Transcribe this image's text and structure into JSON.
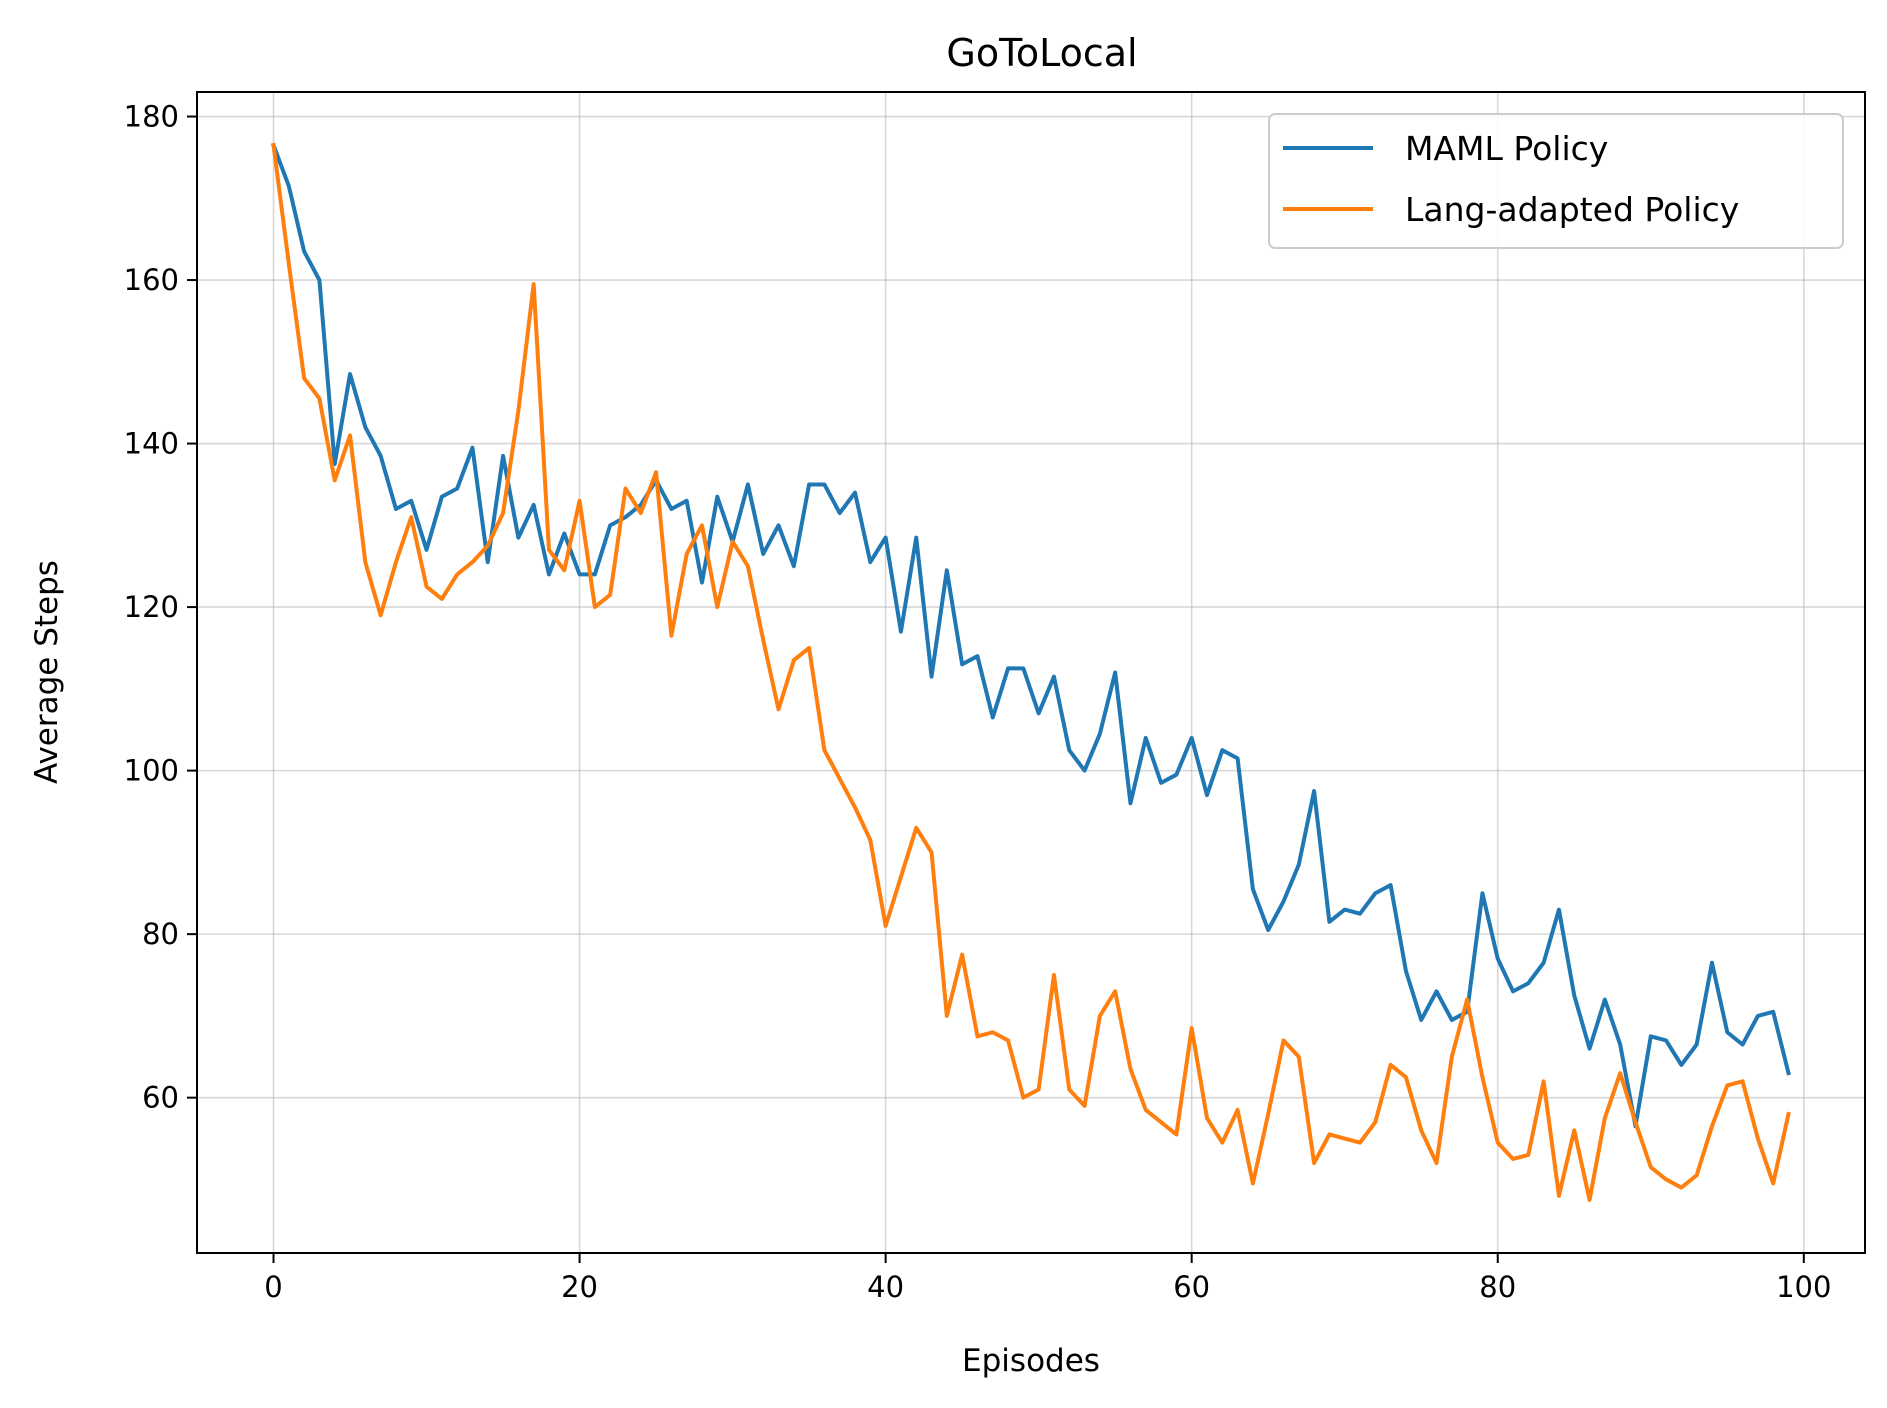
{
  "chart_data": {
    "type": "line",
    "title": "GoToLocal",
    "xlabel": "Episodes",
    "ylabel": "Average Steps",
    "xlim": [
      -5,
      104
    ],
    "ylim": [
      41,
      183
    ],
    "xticks": [
      0,
      20,
      40,
      60,
      80,
      100
    ],
    "yticks": [
      60,
      80,
      100,
      120,
      140,
      160,
      180
    ],
    "grid": true,
    "legend_position": "top-right",
    "series": [
      {
        "name": "MAML Policy",
        "color": "#1f77b4",
        "values": [
          176.5,
          171.5,
          163.5,
          160,
          137.5,
          148.5,
          142,
          138.5,
          132,
          133,
          127,
          133.5,
          134.5,
          139.5,
          125.5,
          138.5,
          128.5,
          132.5,
          124,
          129,
          124,
          124,
          130,
          131,
          132.5,
          135.5,
          132,
          133,
          123,
          133.5,
          128,
          135,
          126.5,
          130,
          125,
          135,
          135,
          131.5,
          134,
          125.5,
          128.5,
          117,
          128.5,
          111.5,
          124.5,
          113,
          114,
          106.5,
          112.5,
          112.5,
          107,
          111.5,
          102.5,
          100,
          104.5,
          112,
          96,
          104,
          98.5,
          99.5,
          104,
          97,
          102.5,
          101.5,
          85.5,
          80.5,
          84,
          88.5,
          97.5,
          81.5,
          83,
          82.5,
          85,
          86,
          75.5,
          69.5,
          73,
          69.5,
          70.5,
          85,
          77,
          73,
          74,
          76.5,
          83,
          72.5,
          66,
          72,
          66.5,
          56.5,
          67.5,
          67,
          64,
          66.5,
          76.5,
          68,
          66.5,
          70,
          70.5,
          63
        ]
      },
      {
        "name": "Lang-adapted Policy",
        "color": "#ff7f0e",
        "values": [
          176.5,
          162,
          148,
          145.5,
          135.5,
          141,
          125.5,
          119,
          125.5,
          131,
          122.5,
          121,
          124,
          125.5,
          127.5,
          131.5,
          144,
          159.5,
          127,
          124.5,
          133,
          120,
          121.5,
          134.5,
          131.5,
          136.5,
          116.5,
          126.5,
          130,
          120,
          128,
          125,
          116,
          107.5,
          113.5,
          115,
          102.5,
          99,
          95.5,
          91.5,
          81,
          87,
          93,
          90,
          70,
          77.5,
          67.5,
          68,
          67,
          60,
          61,
          75,
          61,
          59,
          70,
          73,
          63.5,
          58.5,
          57,
          55.5,
          68.5,
          57.5,
          54.5,
          58.5,
          49.5,
          58,
          67,
          65,
          52,
          55.5,
          55,
          54.5,
          57,
          64,
          62.5,
          56,
          52,
          65,
          72,
          62.5,
          54.5,
          52.5,
          53,
          62,
          48,
          56,
          47.5,
          57.5,
          63,
          57,
          51.5,
          50,
          49,
          50.5,
          56.5,
          61.5,
          62,
          55,
          49.5,
          58
        ]
      }
    ]
  }
}
